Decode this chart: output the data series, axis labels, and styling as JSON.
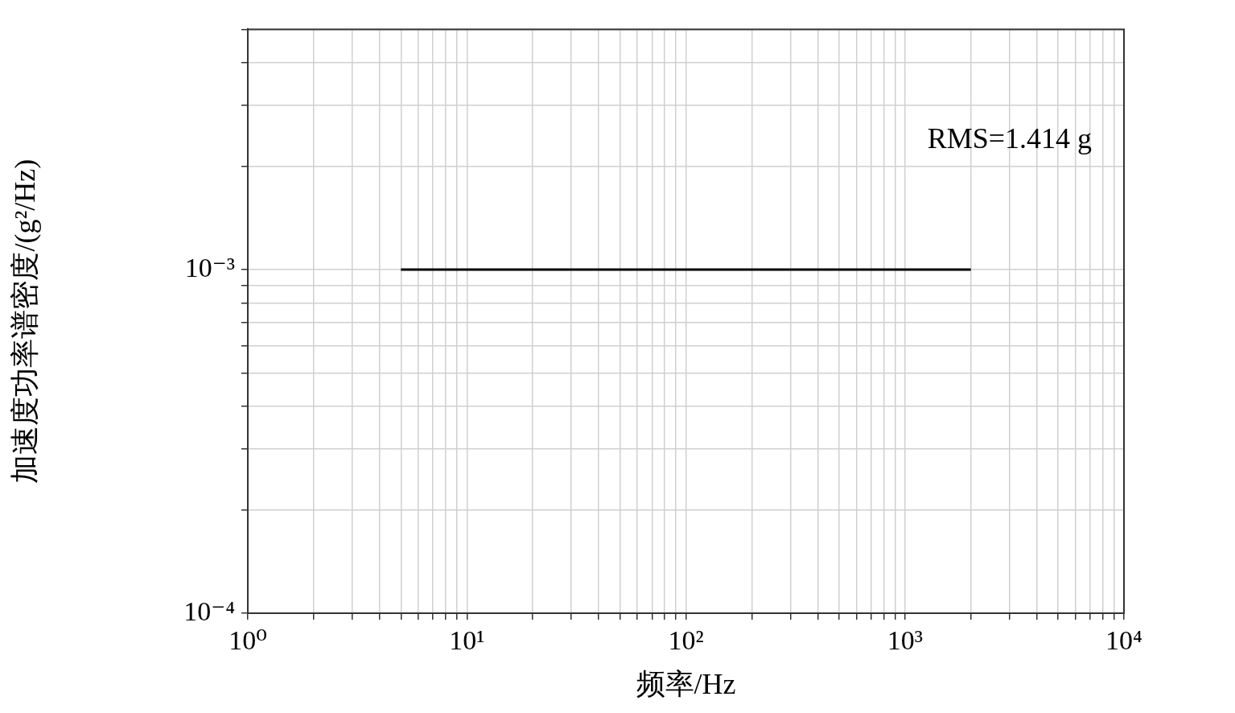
{
  "chart_data": {
    "type": "line",
    "xlabel": "频率/Hz",
    "ylabel": "加速度功率谱密度/(g²/Hz)",
    "log": "xy",
    "grid": true,
    "marker": "none",
    "line_style": "solid",
    "xlim": [
      1,
      10000
    ],
    "xticks": [
      {
        "value": 1,
        "label": "10⁰"
      },
      {
        "value": 2,
        "label": null
      },
      {
        "value": 3,
        "label": null
      },
      {
        "value": 4,
        "label": null
      },
      {
        "value": 5,
        "label": null
      },
      {
        "value": 6,
        "label": null
      },
      {
        "value": 7,
        "label": null
      },
      {
        "value": 8,
        "label": null
      },
      {
        "value": 9,
        "label": null
      },
      {
        "value": 10,
        "label": "10¹"
      },
      {
        "value": 20,
        "label": null
      },
      {
        "value": 30,
        "label": null
      },
      {
        "value": 40,
        "label": null
      },
      {
        "value": 50,
        "label": null
      },
      {
        "value": 60,
        "label": null
      },
      {
        "value": 70,
        "label": null
      },
      {
        "value": 80,
        "label": null
      },
      {
        "value": 90,
        "label": null
      },
      {
        "value": 100,
        "label": "10²"
      },
      {
        "value": 200,
        "label": null
      },
      {
        "value": 300,
        "label": null
      },
      {
        "value": 400,
        "label": null
      },
      {
        "value": 500,
        "label": null
      },
      {
        "value": 600,
        "label": null
      },
      {
        "value": 700,
        "label": null
      },
      {
        "value": 800,
        "label": null
      },
      {
        "value": 900,
        "label": null
      },
      {
        "value": 1000,
        "label": "10³"
      },
      {
        "value": 2000,
        "label": null
      },
      {
        "value": 3000,
        "label": null
      },
      {
        "value": 4000,
        "label": null
      },
      {
        "value": 5000,
        "label": null
      },
      {
        "value": 6000,
        "label": null
      },
      {
        "value": 7000,
        "label": null
      },
      {
        "value": 8000,
        "label": null
      },
      {
        "value": 9000,
        "label": null
      },
      {
        "value": 10000,
        "label": "10⁴"
      }
    ],
    "ylim": [
      0.0001,
      0.005
    ],
    "yticks": [
      {
        "value": 0.0001,
        "label": "10⁻⁴"
      },
      {
        "value": 0.0002,
        "label": null
      },
      {
        "value": 0.0003,
        "label": null
      },
      {
        "value": 0.0004,
        "label": null
      },
      {
        "value": 0.0005,
        "label": null
      },
      {
        "value": 0.0006,
        "label": null
      },
      {
        "value": 0.0007,
        "label": null
      },
      {
        "value": 0.0008,
        "label": null
      },
      {
        "value": 0.0009,
        "label": null
      },
      {
        "value": 0.001,
        "label": "10⁻³"
      },
      {
        "value": 0.002,
        "label": null
      },
      {
        "value": 0.003,
        "label": null
      },
      {
        "value": 0.004,
        "label": null
      },
      {
        "value": 0.005,
        "label": null
      }
    ],
    "series": [
      {
        "color": "#000000",
        "x": [
          5,
          2000
        ],
        "values": [
          0.001,
          0.001
        ]
      }
    ],
    "annotations": [
      "RMS=1.414 g"
    ]
  }
}
